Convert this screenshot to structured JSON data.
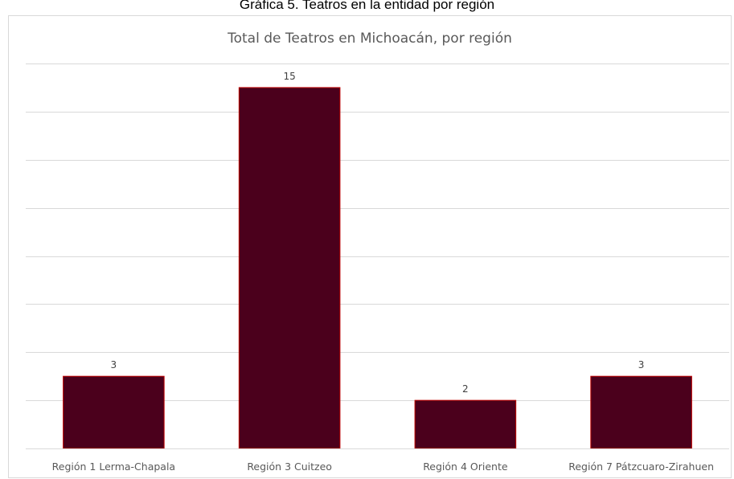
{
  "caption": "Gráfica 5. Teatros en la entidad por región",
  "colors": {
    "bar_fill": "#4b001c",
    "bar_stroke": "#c00000",
    "gridline": "#d9d9d9",
    "axis_line": "#d9d9d9",
    "text": "#595959"
  },
  "chart_data": {
    "type": "bar",
    "title": "Total de Teatros en Michoacán, por región",
    "xlabel": "",
    "ylabel": "",
    "categories": [
      "Región 1 Lerma-Chapala",
      "Región 3 Cuitzeo",
      "Región 4 Oriente",
      "Región 7 Pátzcuaro-Zirahuen"
    ],
    "values": [
      3,
      15,
      2,
      3
    ],
    "data_labels": [
      "3",
      "15",
      "2",
      "3"
    ],
    "ylim": [
      0,
      16
    ],
    "y_gridline_step": 2,
    "y_axis_visible": false,
    "grid": true,
    "legend": "none"
  }
}
